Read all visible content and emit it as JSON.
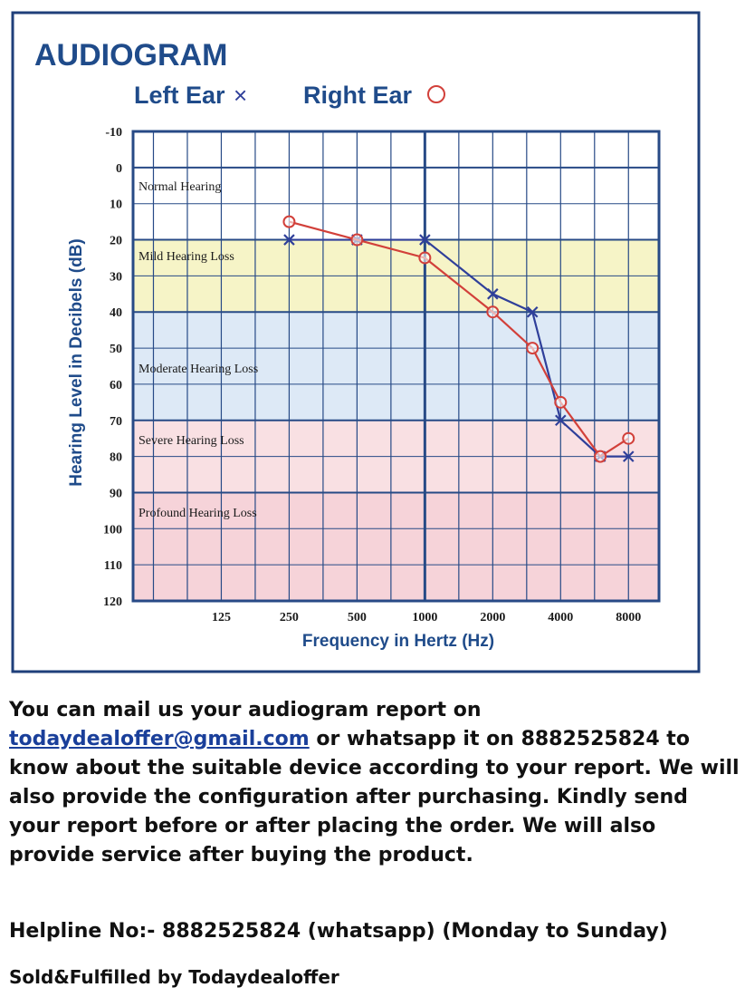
{
  "chart_data": {
    "type": "line",
    "title": "AUDIOGRAM",
    "xlabel": "Frequency in Hertz (Hz)",
    "ylabel": "Hearing Level in Decibels (dB)",
    "ylim": [
      -10,
      120
    ],
    "y_ticks": [
      "-10",
      "0",
      "10",
      "20",
      "30",
      "40",
      "50",
      "60",
      "70",
      "80",
      "90",
      "100",
      "110",
      "120"
    ],
    "x_ticks": [
      "125",
      "250",
      "500",
      "1000",
      "2000",
      "4000",
      "8000"
    ],
    "y_inverted": true,
    "grid": true,
    "legend_placement": "top",
    "zones": [
      {
        "label": "Normal Hearing",
        "from": 0,
        "to": 20,
        "color": "#ffffff"
      },
      {
        "label": "Mild Hearing Loss",
        "from": 20,
        "to": 40,
        "color": "#f6f4c7"
      },
      {
        "label": "Moderate Hearing Loss",
        "from": 40,
        "to": 70,
        "color": "#dde9f6"
      },
      {
        "label": "Severe Hearing Loss",
        "from": 70,
        "to": 90,
        "color": "#f9e0e3"
      },
      {
        "label": "Profound Hearing Loss",
        "from": 90,
        "to": 120,
        "color": "#f6d3d9"
      }
    ],
    "series": [
      {
        "name": "Left Ear",
        "marker": "x",
        "color": "#2f3f9a",
        "points": [
          {
            "x": 250,
            "y": 20
          },
          {
            "x": 500,
            "y": 20
          },
          {
            "x": 1000,
            "y": 20
          },
          {
            "x": 2000,
            "y": 35
          },
          {
            "x": 3000,
            "y": 40
          },
          {
            "x": 4000,
            "y": 70
          },
          {
            "x": 6000,
            "y": 80
          },
          {
            "x": 8000,
            "y": 80
          }
        ]
      },
      {
        "name": "Right Ear",
        "marker": "o",
        "color": "#d2403a",
        "points": [
          {
            "x": 250,
            "y": 15
          },
          {
            "x": 500,
            "y": 20
          },
          {
            "x": 1000,
            "y": 25
          },
          {
            "x": 2000,
            "y": 40
          },
          {
            "x": 3000,
            "y": 50
          },
          {
            "x": 4000,
            "y": 65
          },
          {
            "x": 6000,
            "y": 80
          },
          {
            "x": 8000,
            "y": 75
          }
        ]
      }
    ]
  },
  "colors": {
    "frame": "#1f3f7a",
    "title": "#1f4b8a",
    "grid": "#274a86"
  },
  "info": {
    "line1": "You can mail us your audiogram report on",
    "email": "todaydealoffer@gmail.com",
    "after_email": " or whatsapp it on 8882525824 to know about the suitable device according to your report. We will also provide the configuration after purchasing. Kindly send your report before or after placing the order. We will also provide service after buying the product.",
    "helpline": "Helpline No:- 8882525824 (whatsapp) (Monday to Sunday)",
    "sold": "Sold&Fulfilled by Todaydealoffer"
  }
}
